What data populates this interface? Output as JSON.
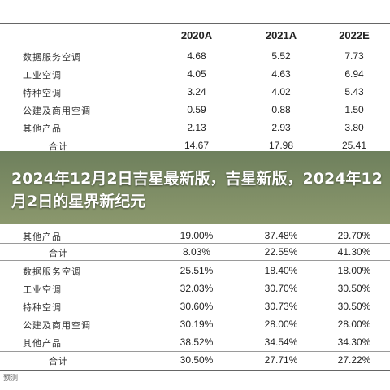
{
  "table": {
    "columns": [
      "2020A",
      "2021A",
      "2022E"
    ],
    "section1": [
      {
        "label": "数据服务空调",
        "values": [
          "4.68",
          "5.52",
          "7.73"
        ]
      },
      {
        "label": "工业空调",
        "values": [
          "4.05",
          "4.63",
          "6.94"
        ]
      },
      {
        "label": "特种空调",
        "values": [
          "3.24",
          "4.02",
          "5.43"
        ]
      },
      {
        "label": "公建及商用空调",
        "values": [
          "0.59",
          "0.88",
          "1.50"
        ]
      },
      {
        "label": "其他产品",
        "values": [
          "2.13",
          "2.93",
          "3.80"
        ]
      },
      {
        "label": "合计",
        "values": [
          "14.67",
          "17.98",
          "25.41"
        ]
      }
    ],
    "section2_partial": [
      {
        "label": "其他产品",
        "values": [
          "19.00%",
          "37.48%",
          "29.70%"
        ]
      },
      {
        "label": "合计",
        "values": [
          "8.03%",
          "22.55%",
          "41.30%"
        ]
      }
    ],
    "section3": [
      {
        "label": "数据服务空调",
        "values": [
          "25.51%",
          "18.40%",
          "18.00%"
        ]
      },
      {
        "label": "工业空调",
        "values": [
          "32.03%",
          "30.70%",
          "30.50%"
        ]
      },
      {
        "label": "特种空调",
        "values": [
          "30.60%",
          "30.73%",
          "30.50%"
        ]
      },
      {
        "label": "公建及商用空调",
        "values": [
          "30.19%",
          "28.00%",
          "28.00%"
        ]
      },
      {
        "label": "其他产品",
        "values": [
          "38.52%",
          "34.54%",
          "34.30%"
        ]
      },
      {
        "label": "合计",
        "values": [
          "30.50%",
          "27.71%",
          "27.22%"
        ]
      }
    ]
  },
  "banner": {
    "title": "2024年12月2日吉星最新版，吉星新版，2024年12月2日的星界新纪元"
  },
  "footer": "预测"
}
